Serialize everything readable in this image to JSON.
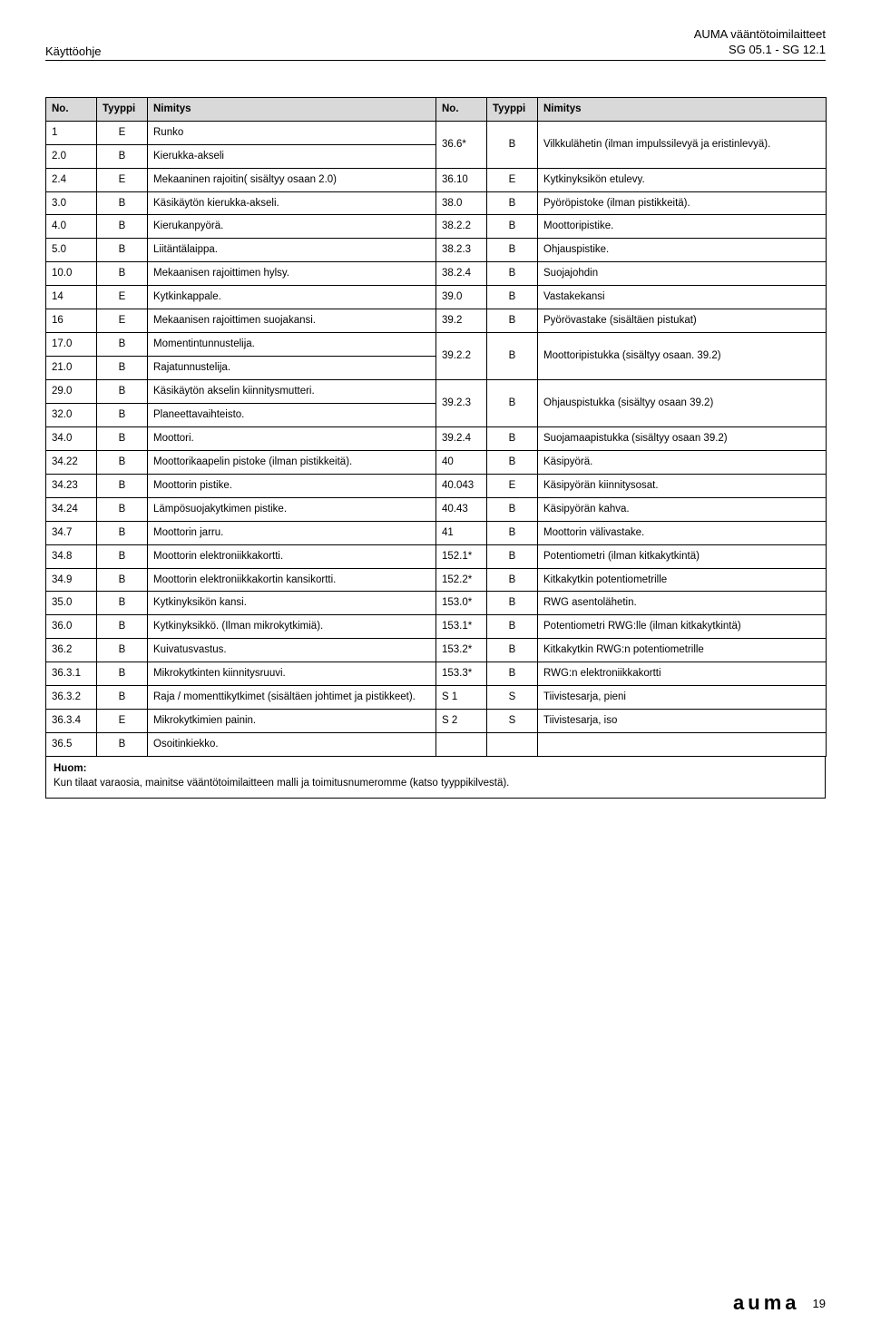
{
  "header": {
    "left": "Käyttöohje",
    "right_line1": "AUMA vääntötoimilaitteet",
    "right_line2": "SG 05.1 - SG 12.1"
  },
  "table": {
    "headers": {
      "no": "No.",
      "type": "Tyyppi",
      "name": "Nimitys"
    }
  },
  "rows_left": [
    {
      "no": "1",
      "type": "E",
      "name": "Runko"
    },
    {
      "no": "2.0",
      "type": "B",
      "name": "Kierukka-akseli"
    },
    {
      "no": "2.4",
      "type": "E",
      "name": "Mekaaninen rajoitin( sisältyy osaan 2.0)"
    },
    {
      "no": "3.0",
      "type": "B",
      "name": "Käsikäytön kierukka-akseli."
    },
    {
      "no": "4.0",
      "type": "B",
      "name": "Kierukanpyörä."
    },
    {
      "no": "5.0",
      "type": "B",
      "name": "Liitäntälaippa."
    },
    {
      "no": "10.0",
      "type": "B",
      "name": "Mekaanisen rajoittimen hylsy."
    },
    {
      "no": "14",
      "type": "E",
      "name": "Kytkinkappale."
    },
    {
      "no": "16",
      "type": "E",
      "name": "Mekaanisen rajoittimen suojakansi."
    },
    {
      "no": "17.0",
      "type": "B",
      "name": "Momentintunnustelija."
    },
    {
      "no": "21.0",
      "type": "B",
      "name": "Rajatunnustelija."
    },
    {
      "no": "29.0",
      "type": "B",
      "name": "Käsikäytön akselin kiinnitysmutteri."
    },
    {
      "no": "32.0",
      "type": "B",
      "name": "Planeettavaihteisto."
    },
    {
      "no": "34.0",
      "type": "B",
      "name": "Moottori."
    },
    {
      "no": "34.22",
      "type": "B",
      "name": "Moottorikaapelin pistoke (ilman pistikkeitä)."
    },
    {
      "no": "34.23",
      "type": "B",
      "name": "Moottorin pistike."
    },
    {
      "no": "34.24",
      "type": "B",
      "name": "Lämpösuojakytkimen pistike."
    },
    {
      "no": "34.7",
      "type": "B",
      "name": "Moottorin jarru."
    },
    {
      "no": "34.8",
      "type": "B",
      "name": "Moottorin elektroniikkakortti."
    },
    {
      "no": "34.9",
      "type": "B",
      "name": "Moottorin elektroniikkakortin kansikortti."
    },
    {
      "no": "35.0",
      "type": "B",
      "name": "Kytkinyksikön kansi."
    },
    {
      "no": "36.0",
      "type": "B",
      "name": "Kytkinyksikkö. (Ilman mikrokytkimiä)."
    },
    {
      "no": "36.2",
      "type": "B",
      "name": "Kuivatusvastus."
    },
    {
      "no": "36.3.1",
      "type": "B",
      "name": "Mikrokytkinten kiinnitysruuvi."
    },
    {
      "no": "36.3.2",
      "type": "B",
      "name": "Raja / momenttikytkimet (sisältäen johtimet ja pistikkeet)."
    },
    {
      "no": "36.3.4",
      "type": "E",
      "name": "Mikrokytkimien painin."
    },
    {
      "no": "36.5",
      "type": "B",
      "name": "Osoitinkiekko."
    }
  ],
  "rows_right": [
    {
      "no": "36.6*",
      "type": "B",
      "name": "Vilkkulähetin (ilman impulssilevyä ja eristinlevyä).",
      "span": 2
    },
    {
      "no": "36.10",
      "type": "E",
      "name": "Kytkinyksikön etulevy.",
      "span": 1
    },
    {
      "no": "38.0",
      "type": "B",
      "name": "Pyöröpistoke (ilman pistikkeitä).",
      "span": 1
    },
    {
      "no": "38.2.2",
      "type": "B",
      "name": "Moottoripistike.",
      "span": 1
    },
    {
      "no": "38.2.3",
      "type": "B",
      "name": "Ohjauspistike.",
      "span": 1
    },
    {
      "no": "38.2.4",
      "type": "B",
      "name": "Suojajohdin",
      "span": 1
    },
    {
      "no": "39.0",
      "type": "B",
      "name": "Vastakekansi",
      "span": 1
    },
    {
      "no": "39.2",
      "type": "B",
      "name": "Pyörövastake (sisältäen pistukat)",
      "span": 1
    },
    {
      "no": "39.2.2",
      "type": "B",
      "name": "Moottoripistukka (sisältyy osaan. 39.2)",
      "span": 2
    },
    {
      "no": "39.2.3",
      "type": "B",
      "name": "Ohjauspistukka (sisältyy osaan 39.2)",
      "span": 2
    },
    {
      "no": "39.2.4",
      "type": "B",
      "name": "Suojamaapistukka (sisältyy osaan 39.2)",
      "span": 1
    },
    {
      "no": "40",
      "type": "B",
      "name": "Käsipyörä.",
      "span": 1
    },
    {
      "no": "40.043",
      "type": "E",
      "name": "Käsipyörän kiinnitysosat.",
      "span": 1
    },
    {
      "no": "40.43",
      "type": "B",
      "name": "Käsipyörän kahva.",
      "span": 1
    },
    {
      "no": "41",
      "type": "B",
      "name": "Moottorin välivastake.",
      "span": 1
    },
    {
      "no": "152.1*",
      "type": "B",
      "name": "Potentiometri (ilman kitkakytkintä)",
      "span": 1
    },
    {
      "no": "152.2*",
      "type": "B",
      "name": "Kitkakytkin potentiometrille",
      "span": 1
    },
    {
      "no": "153.0*",
      "type": "B",
      "name": "RWG asentolähetin.",
      "span": 1
    },
    {
      "no": "153.1*",
      "type": "B",
      "name": "Potentiometri RWG:lle (ilman kitkakytkintä)",
      "span": 1
    },
    {
      "no": "153.2*",
      "type": "B",
      "name": "Kitkakytkin RWG:n potentiometrille",
      "span": 1
    },
    {
      "no": "153.3*",
      "type": "B",
      "name": "RWG:n elektroniikkakortti",
      "span": 1
    },
    {
      "no": "S 1",
      "type": "S",
      "name": "Tiivistesarja, pieni",
      "span": 1
    },
    {
      "no": "S 2",
      "type": "S",
      "name": "Tiivistesarja, iso",
      "span": 1
    },
    {
      "no": "",
      "type": "",
      "name": "",
      "span": 1
    },
    {
      "no": "",
      "type": "",
      "name": "",
      "span": 1
    }
  ],
  "note": {
    "label": "Huom:",
    "text": "Kun tilaat varaosia, mainitse vääntötoimilaitteen malli ja toimitusnumeromme (katso tyyppikilvestä)."
  },
  "footer": {
    "logo": "auma",
    "page": "19"
  }
}
